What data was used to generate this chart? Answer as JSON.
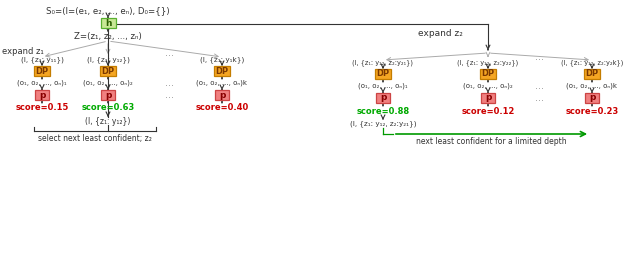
{
  "bg_color": "#ffffff",
  "left_tree": {
    "s0_text": "S₀=(l=(e₁, e₂, ..., eₙ), D₀={})",
    "h_label": "h",
    "h_bg": "#c8e896",
    "h_border": "#5ab030",
    "z_text": "Z=(z₁, z₂, ..., zₙ)",
    "expand_z1": "expand z₁",
    "branch_labels": [
      "(l, {z₁: y₁₁})",
      "(l, {z₁: y₁₂})",
      "(l, {z₁: y₁k})"
    ],
    "dp_bg": "#f5a623",
    "dp_border": "#c47d00",
    "p_bg": "#f08080",
    "p_border": "#cc4444",
    "o_texts": [
      "(o₁, o₂, ..., oₙ)₁",
      "(o₁, o₂, ..., oₙ)₂",
      "(o₁, o₂, ..., oₙ)k"
    ],
    "scores": [
      "score=0.15",
      "score=0.63",
      "score=0.40"
    ],
    "score_colors": [
      "#cc0000",
      "#00aa00",
      "#cc0000"
    ],
    "selected_label": "(l, {z₁: y₁₂})",
    "select_text": "select next least confident; z₂"
  },
  "right_tree": {
    "expand_z2": "expand z₂",
    "branch_labels": [
      "(l, {z₁: y₁₂, z₂:y₂₁})",
      "(l, {z₁: y₁₂, z₂:y₂₂})",
      "(l, {z₁: y₁₂, z₂:y₂k})"
    ],
    "dp_bg": "#f5a623",
    "dp_border": "#c47d00",
    "p_bg": "#f08080",
    "p_border": "#cc4444",
    "o_texts": [
      "(o₁, o₂, ..., oₙ)₁",
      "(o₁, o₂, ..., oₙ)₂",
      "(o₁, o₂, ..., oₙ)k"
    ],
    "scores": [
      "score=0.88",
      "score=0.12",
      "score=0.23"
    ],
    "score_colors": [
      "#00aa00",
      "#cc0000",
      "#cc0000"
    ],
    "selected_label": "(l, {z₁: y₁₂, z₂:y₂₁})",
    "next_text": "next least confident for a limited depth"
  },
  "dark_color": "#333333",
  "gray_color": "#999999",
  "green_color": "#009900"
}
